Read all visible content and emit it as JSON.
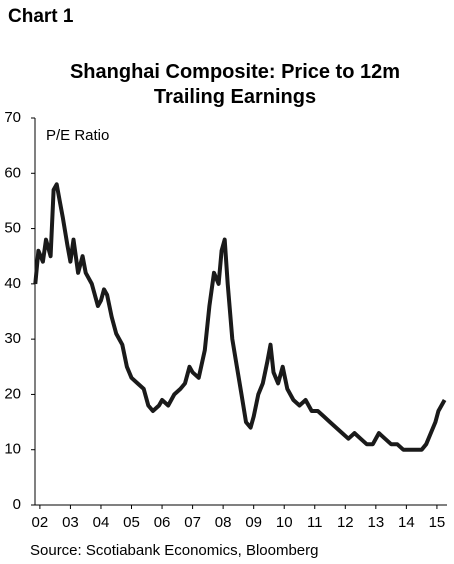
{
  "chart_data": {
    "type": "line",
    "label": "Chart 1",
    "title": "Shanghai Composite: Price to 12m Trailing Earnings",
    "y_label": "P/E Ratio",
    "source": "Source: Scotiabank Economics, Bloomberg",
    "x": [
      1.85,
      1.95,
      2.1,
      2.2,
      2.35,
      2.45,
      2.55,
      2.65,
      2.75,
      2.9,
      3.0,
      3.1,
      3.25,
      3.4,
      3.5,
      3.7,
      3.9,
      4.0,
      4.1,
      4.2,
      4.35,
      4.5,
      4.7,
      4.85,
      5.0,
      5.2,
      5.4,
      5.55,
      5.7,
      5.9,
      6.0,
      6.2,
      6.4,
      6.6,
      6.75,
      6.9,
      7.0,
      7.2,
      7.4,
      7.55,
      7.7,
      7.85,
      7.95,
      8.05,
      8.15,
      8.3,
      8.45,
      8.6,
      8.75,
      8.9,
      9.0,
      9.15,
      9.3,
      9.45,
      9.55,
      9.65,
      9.8,
      9.95,
      10.1,
      10.3,
      10.5,
      10.7,
      10.9,
      11.1,
      11.3,
      11.5,
      11.7,
      11.9,
      12.1,
      12.3,
      12.5,
      12.7,
      12.9,
      13.1,
      13.3,
      13.5,
      13.7,
      13.9,
      14.1,
      14.3,
      14.5,
      14.65,
      14.8,
      14.95,
      15.05,
      15.15,
      15.25
    ],
    "series": [
      {
        "name": "P/E Ratio",
        "color": "#1a1a1a",
        "values": [
          40,
          46,
          44,
          48,
          45,
          57,
          58,
          55,
          52,
          47,
          44,
          48,
          42,
          45,
          42,
          40,
          36,
          37,
          39,
          38,
          34,
          31,
          29,
          25,
          23,
          22,
          21,
          18,
          17,
          18,
          19,
          18,
          20,
          21,
          22,
          25,
          24,
          23,
          28,
          36,
          42,
          40,
          46,
          48,
          40,
          30,
          25,
          20,
          15,
          14,
          16,
          20,
          22,
          26,
          29,
          24,
          22,
          25,
          21,
          19,
          18,
          19,
          17,
          17,
          16,
          15,
          14,
          13,
          12,
          13,
          12,
          11,
          11,
          13,
          12,
          11,
          11,
          10,
          10,
          10,
          10,
          11,
          13,
          15,
          17,
          18,
          19
        ]
      }
    ],
    "xlim": [
      1.84,
      15.33
    ],
    "xticks": [
      {
        "value": 2,
        "label": "02"
      },
      {
        "value": 3,
        "label": "03"
      },
      {
        "value": 4,
        "label": "04"
      },
      {
        "value": 5,
        "label": "05"
      },
      {
        "value": 6,
        "label": "06"
      },
      {
        "value": 7,
        "label": "07"
      },
      {
        "value": 8,
        "label": "08"
      },
      {
        "value": 9,
        "label": "09"
      },
      10,
      11,
      12,
      13,
      14,
      15
    ],
    "ylim": [
      0,
      70
    ],
    "yticks": [
      0,
      10,
      20,
      30,
      40,
      50,
      60,
      70
    ]
  }
}
